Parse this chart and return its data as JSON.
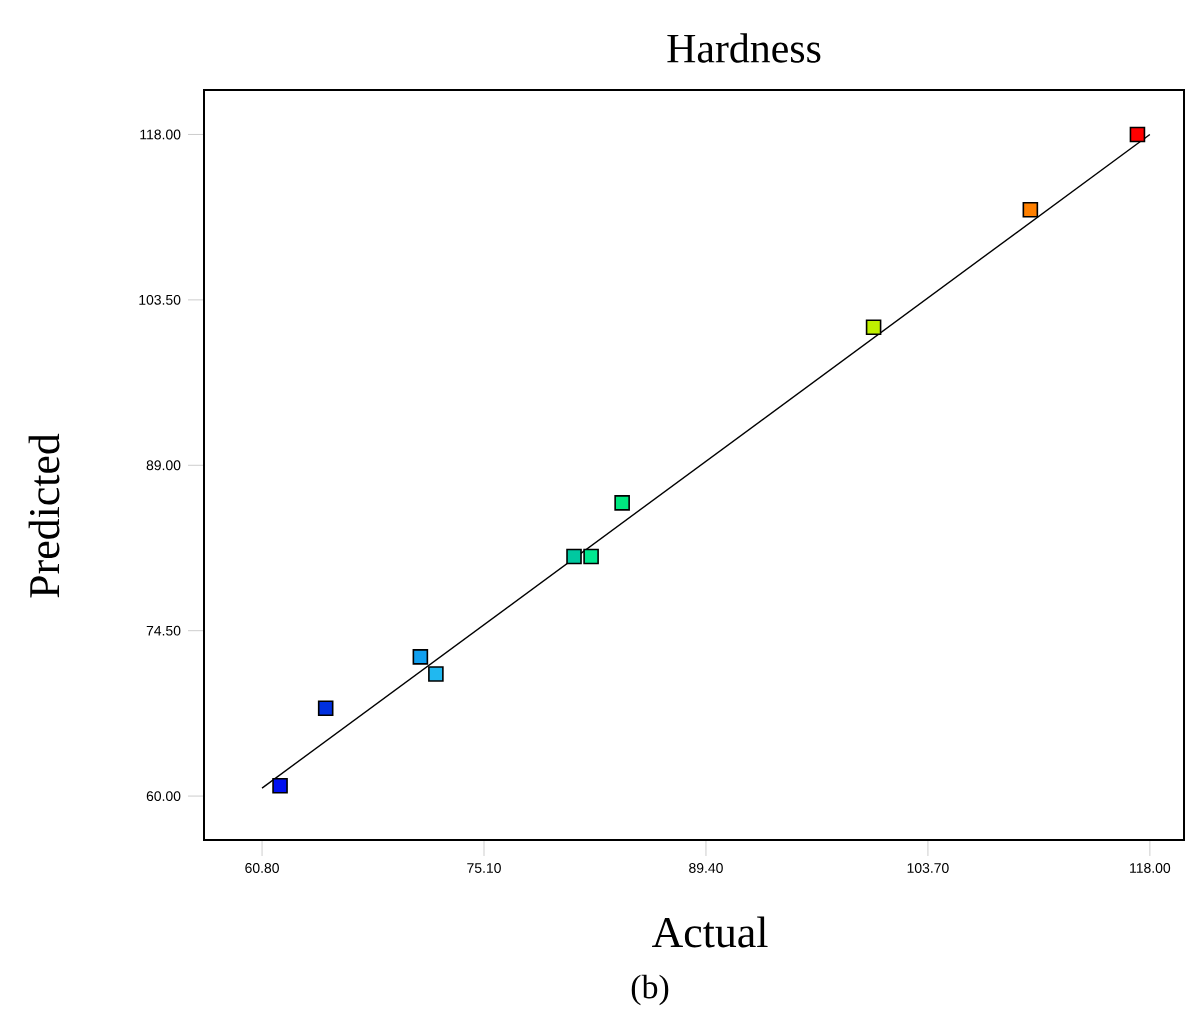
{
  "chart_data": {
    "type": "scatter",
    "title": "Hardness",
    "xlabel": "Actual",
    "ylabel": "Predicted",
    "annotations": [
      "(b)"
    ],
    "xlim": [
      57.06,
      120.2
    ],
    "ylim": [
      56.15,
      121.9
    ],
    "xticks": [
      {
        "value": 60.8,
        "label": "60.80"
      },
      {
        "value": 75.1,
        "label": "75.10"
      },
      {
        "value": 89.4,
        "label": "89.40"
      },
      {
        "value": 103.7,
        "label": "103.70"
      },
      {
        "value": 118,
        "label": "118.00"
      }
    ],
    "yticks": [
      {
        "value": 60,
        "label": "60.00"
      },
      {
        "value": 74.5,
        "label": "74.50"
      },
      {
        "value": 89,
        "label": "89.00"
      },
      {
        "value": 103.5,
        "label": "103.50"
      },
      {
        "value": 118,
        "label": "118.00"
      }
    ],
    "grid": false,
    "series": [
      {
        "marker": "square",
        "x": [
          61.96,
          64.9,
          71.0,
          72.0,
          80.9,
          82.0,
          84.0,
          100.2,
          110.3,
          117.2
        ],
        "values": [
          60.9,
          67.7,
          72.2,
          70.7,
          81.0,
          81.0,
          85.7,
          101.1,
          111.4,
          118.0
        ],
        "colors": [
          "#0010f0",
          "#0030e0",
          "#10a0f0",
          "#20b8f0",
          "#00c8a0",
          "#00e890",
          "#00e880",
          "#c0f000",
          "#ff8000",
          "#ff0000"
        ]
      },
      {
        "type": "line",
        "marker": "none",
        "line_style": "solid",
        "color": "#000000",
        "x": [
          60.8,
          118.0
        ],
        "values": [
          60.7,
          118.0
        ]
      }
    ]
  }
}
